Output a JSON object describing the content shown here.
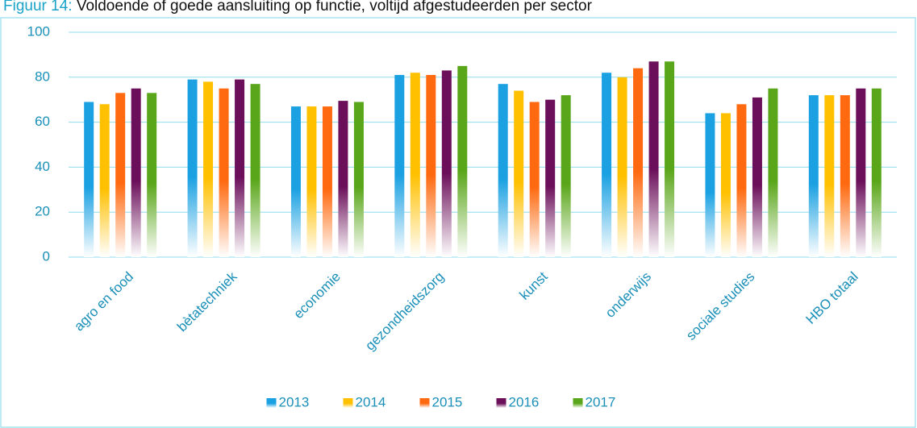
{
  "chart_data": {
    "type": "bar",
    "title_prefix": "Figuur 14:",
    "title": "Voldoende of goede aansluiting op functie, voltijd afgestudeerden per sector",
    "categories": [
      "agro en food",
      "bètatechniek",
      "economie",
      "gezondheidszorg",
      "kunst",
      "onderwijs",
      "sociale studies",
      "HBO totaal"
    ],
    "series": [
      {
        "name": "2013",
        "color": "#1ba1e2",
        "values": [
          69,
          79,
          67,
          81,
          77,
          82,
          64,
          72
        ]
      },
      {
        "name": "2014",
        "color": "#ffc000",
        "values": [
          68,
          78,
          67,
          82,
          74,
          80,
          64,
          72
        ]
      },
      {
        "name": "2015",
        "color": "#ff6a10",
        "values": [
          73,
          75,
          67,
          81,
          69,
          84,
          68,
          72
        ]
      },
      {
        "name": "2016",
        "color": "#6b0f5a",
        "values": [
          75,
          79,
          69.5,
          83,
          70,
          87,
          71,
          75
        ]
      },
      {
        "name": "2017",
        "color": "#5aa61a",
        "values": [
          73,
          77,
          69,
          85,
          72,
          87,
          75,
          75
        ]
      }
    ],
    "ylim": [
      0,
      100
    ],
    "yticks": [
      0,
      20,
      40,
      60,
      80,
      100
    ],
    "grid": true,
    "legend": "bottom"
  }
}
